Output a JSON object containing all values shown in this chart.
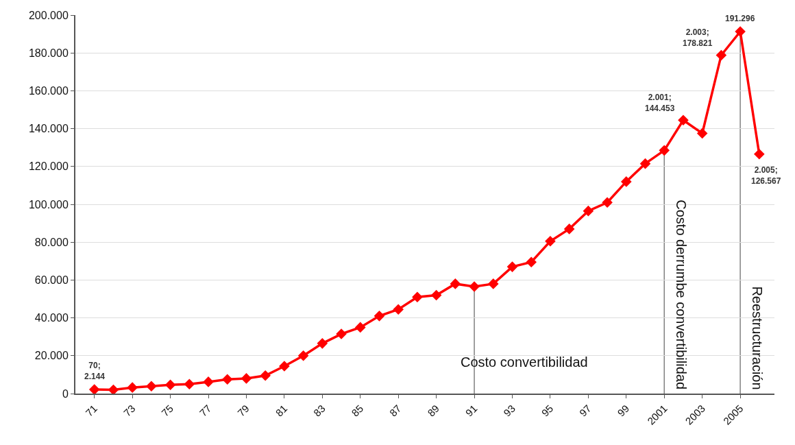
{
  "chart_data": {
    "type": "line",
    "categories": [
      "71",
      null,
      "73",
      null,
      "75",
      null,
      "77",
      null,
      "79",
      null,
      "81",
      null,
      "83",
      null,
      "85",
      null,
      "87",
      null,
      "89",
      null,
      "91",
      null,
      "93",
      null,
      "95",
      null,
      "97",
      null,
      "99",
      null,
      "2001",
      null,
      "2003",
      null,
      "2005",
      null
    ],
    "series": [
      {
        "color": "#ff0000",
        "values": [
          2144,
          2000,
          3200,
          3900,
          4600,
          5000,
          6200,
          7500,
          8000,
          9500,
          14500,
          20000,
          26500,
          31500,
          35000,
          41000,
          44500,
          51000,
          52000,
          58000,
          56500,
          58000,
          67000,
          69500,
          80500,
          87000,
          96500,
          101000,
          112000,
          121500,
          128500,
          144453,
          137500,
          178821,
          191296,
          126567
        ]
      }
    ],
    "value_labels": [
      "70;\n2.144",
      null,
      null,
      null,
      null,
      null,
      null,
      null,
      null,
      null,
      null,
      null,
      null,
      null,
      null,
      null,
      null,
      null,
      null,
      null,
      null,
      null,
      null,
      null,
      null,
      null,
      null,
      null,
      null,
      null,
      null,
      "2.001;\n144.453",
      null,
      "2.003;\n178.821",
      "191.296",
      "2.005;\n126.567"
    ],
    "ylim": [
      0,
      200000
    ],
    "yticks": [
      {
        "value": 0,
        "label": "0"
      },
      {
        "value": 20000,
        "label": "20.000"
      },
      {
        "value": 40000,
        "label": "40.000"
      },
      {
        "value": 60000,
        "label": "60.000"
      },
      {
        "value": 80000,
        "label": "80.000"
      },
      {
        "value": 100000,
        "label": "100.000"
      },
      {
        "value": 120000,
        "label": "120.000"
      },
      {
        "value": 140000,
        "label": "140.000"
      },
      {
        "value": 160000,
        "label": "160.000"
      },
      {
        "value": 180000,
        "label": "180.000"
      },
      {
        "value": 200000,
        "label": "200.000"
      }
    ],
    "ref_lines": [
      {
        "axis": "x",
        "value": "91",
        "label": "Costo convertibilidad",
        "color": "#808080"
      },
      {
        "axis": "x",
        "value": "2001",
        "label": "Costo derrumbe convertibilidad",
        "color": "#808080"
      },
      {
        "axis": "x",
        "value": "2005",
        "label": "Reestructuración",
        "color": "#808080"
      }
    ],
    "grid": "y",
    "marker": "diamond",
    "line_style": "solid"
  }
}
